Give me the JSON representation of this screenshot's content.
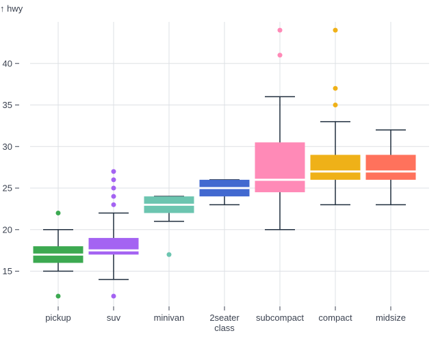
{
  "chart_data": {
    "type": "box",
    "ylabel": "↑ hwy",
    "xlabel": "class",
    "ylim": [
      10.6,
      45
    ],
    "yticks": [
      15,
      20,
      25,
      30,
      35,
      40
    ],
    "grid": true,
    "categories": [
      "pickup",
      "suv",
      "minivan",
      "2seater",
      "subcompact",
      "compact",
      "midsize"
    ],
    "colors": [
      "#3ca951",
      "#a463f2",
      "#6cc5b0",
      "#4269d0",
      "#ff8ab7",
      "#efb118",
      "#ff725c"
    ],
    "whisker_color": "#1f2d3d",
    "boxes": [
      {
        "q1": 16,
        "median": 17,
        "q3": 18,
        "low": 15,
        "high": 20,
        "outliers": [
          22,
          12
        ]
      },
      {
        "q1": 17,
        "median": 17.5,
        "q3": 19,
        "low": 14,
        "high": 22,
        "outliers": [
          23,
          24,
          25,
          26,
          27,
          12
        ]
      },
      {
        "q1": 22,
        "median": 23,
        "q3": 24,
        "low": 21,
        "high": 24,
        "outliers": [
          17
        ]
      },
      {
        "q1": 24,
        "median": 25,
        "q3": 26,
        "low": 23,
        "high": 26,
        "outliers": []
      },
      {
        "q1": 24.5,
        "median": 26,
        "q3": 30.5,
        "low": 20,
        "high": 36,
        "outliers": [
          41,
          44
        ]
      },
      {
        "q1": 26,
        "median": 27,
        "q3": 29,
        "low": 23,
        "high": 33,
        "outliers": [
          35,
          37,
          44
        ]
      },
      {
        "q1": 26,
        "median": 27,
        "q3": 29,
        "low": 23,
        "high": 32,
        "outliers": []
      }
    ]
  }
}
